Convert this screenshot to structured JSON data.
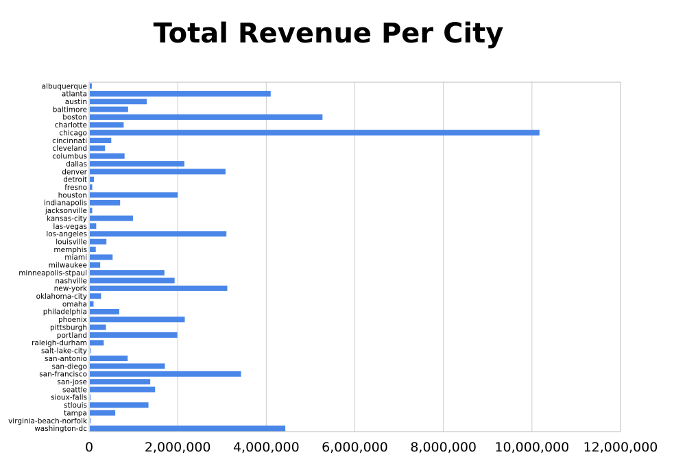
{
  "chart_data": {
    "type": "bar",
    "orientation": "horizontal",
    "title": "Total Revenue Per City",
    "xlabel": "",
    "ylabel": "",
    "xlim": [
      0,
      12000000
    ],
    "x_ticks": [
      0,
      2000000,
      4000000,
      6000000,
      8000000,
      10000000,
      12000000
    ],
    "x_tick_labels": [
      "0",
      "2,000,000",
      "4,000,000",
      "6,000,000",
      "8,000,000",
      "10,000,000",
      "12,000,000"
    ],
    "grid": true,
    "bar_color": "#4a86e8",
    "grid_color": "#cccccc",
    "categories": [
      "albuquerque",
      "atlanta",
      "austin",
      "baltimore",
      "boston",
      "charlotte",
      "chicago",
      "cincinnati",
      "cleveland",
      "columbus",
      "dallas",
      "denver",
      "detroit",
      "fresno",
      "houston",
      "indianapolis",
      "jacksonville",
      "kansas-city",
      "las-vegas",
      "los-angeles",
      "louisville",
      "memphis",
      "miami",
      "milwaukee",
      "minneapolis-stpaul",
      "nashville",
      "new-york",
      "oklahoma-city",
      "omaha",
      "philadelphia",
      "phoenix",
      "pittsburgh",
      "portland",
      "raleigh-durham",
      "salt-lake-city",
      "san-antonio",
      "san-diego",
      "san-francisco",
      "san-jose",
      "seattle",
      "sioux-falls",
      "stlouis",
      "tampa",
      "virginia-beach-norfolk",
      "washington-dc"
    ],
    "values": [
      60000,
      4100000,
      1300000,
      880000,
      5270000,
      780000,
      10170000,
      500000,
      360000,
      800000,
      2150000,
      3080000,
      110000,
      70000,
      2000000,
      700000,
      70000,
      990000,
      160000,
      3100000,
      390000,
      150000,
      530000,
      250000,
      1700000,
      1930000,
      3120000,
      270000,
      100000,
      680000,
      2160000,
      380000,
      1990000,
      330000,
      30000,
      870000,
      1710000,
      3430000,
      1380000,
      1490000,
      20000,
      1340000,
      590000,
      15000,
      4430000
    ]
  }
}
